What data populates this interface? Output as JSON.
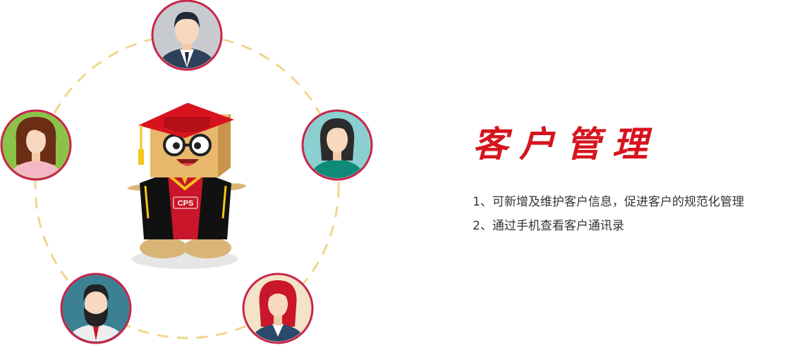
{
  "colors": {
    "accent": "#d7141e",
    "dash_ring": "#f2d58f",
    "avatar_border": "#c8264a",
    "text": "#333333"
  },
  "section": {
    "title": "客户管理",
    "features": [
      "1、可新增及维护客户信息，促进客户的规范化管理",
      "2、通过手机查看客户通讯录"
    ]
  },
  "mascot": {
    "badge_text": "CPS"
  },
  "avatars": [
    {
      "name": "avatar-man-suit-icon",
      "bg": "#c7cbd0"
    },
    {
      "name": "avatar-woman-teal-icon",
      "bg": "#8ccfd0"
    },
    {
      "name": "avatar-woman-redhair-icon",
      "bg": "#f3e3c8"
    },
    {
      "name": "avatar-man-beard-icon",
      "bg": "#3c8193"
    },
    {
      "name": "avatar-woman-curly-icon",
      "bg": "#8bc34a"
    }
  ]
}
